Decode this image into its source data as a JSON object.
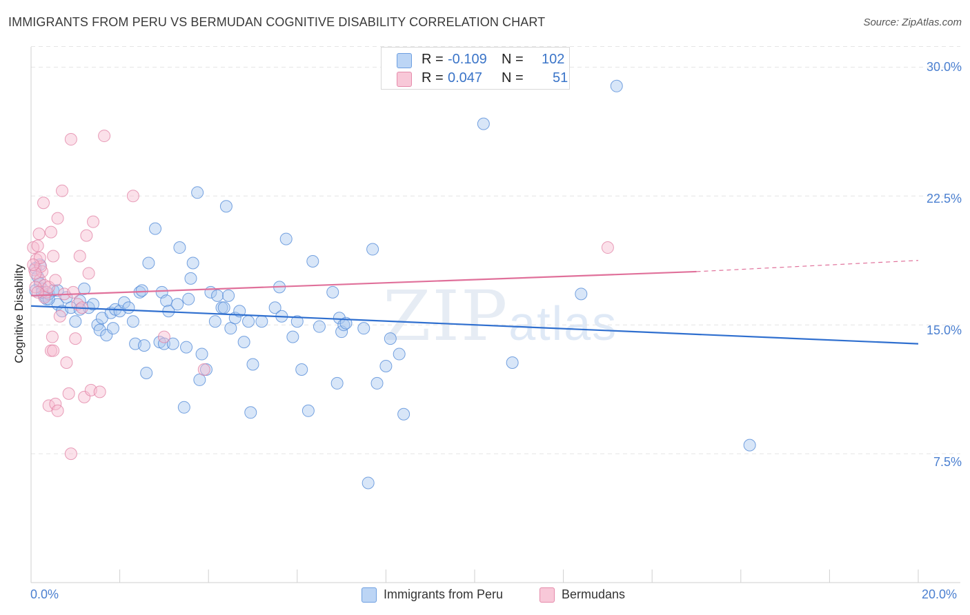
{
  "title": "IMMIGRANTS FROM PERU VS BERMUDAN COGNITIVE DISABILITY CORRELATION CHART",
  "source": "Source: ZipAtlas.com",
  "watermark": {
    "zip": "ZIP",
    "atlas": "atlas"
  },
  "colors": {
    "blue_fill": "#a9c8f0",
    "blue_stroke": "#4a84d6",
    "blue_line": "#2f6fcf",
    "pink_fill": "#f6bcd0",
    "pink_stroke": "#e07ea2",
    "pink_line": "#e0709a",
    "grid": "#e4e4e4",
    "tick_text": "#4a7fd0"
  },
  "legend_top": {
    "rows": [
      {
        "r_label": "R =",
        "r_value": "-0.109",
        "n_label": "N =",
        "n_value": "102"
      },
      {
        "r_label": "R =",
        "r_value": "0.047",
        "n_label": "N =",
        "n_value": "51"
      }
    ]
  },
  "legend_bottom": [
    "Immigrants from Peru",
    "Bermudans"
  ],
  "chart_data": {
    "type": "scatter",
    "title": "IMMIGRANTS FROM PERU VS BERMUDAN COGNITIVE DISABILITY CORRELATION CHART",
    "xlabel": "",
    "ylabel": "Cognitive Disability",
    "xlim": [
      0,
      20
    ],
    "ylim": [
      0,
      31.5
    ],
    "x_ticks": [
      "0.0%",
      "20.0%"
    ],
    "y_ticks": [
      "7.5%",
      "15.0%",
      "22.5%",
      "30.0%"
    ],
    "y_tick_values": [
      7.5,
      15.0,
      22.5,
      30.0
    ],
    "grid": true,
    "legend_position": "top-center",
    "series": [
      {
        "name": "Immigrants from Peru",
        "trend": {
          "x": [
            0,
            20
          ],
          "y": [
            16.1,
            13.9
          ]
        },
        "points": [
          [
            0.1,
            18.3
          ],
          [
            0.15,
            17.8
          ],
          [
            0.2,
            17.4
          ],
          [
            0.25,
            17.1
          ],
          [
            0.3,
            16.7
          ],
          [
            0.35,
            16.5
          ],
          [
            0.1,
            17.0
          ],
          [
            0.2,
            18.5
          ],
          [
            0.4,
            16.8
          ],
          [
            0.5,
            17.0
          ],
          [
            0.6,
            16.2
          ],
          [
            0.7,
            15.8
          ],
          [
            0.8,
            16.6
          ],
          [
            0.9,
            16.0
          ],
          [
            1.0,
            15.2
          ],
          [
            1.1,
            16.4
          ],
          [
            1.2,
            17.1
          ],
          [
            1.3,
            16.0
          ],
          [
            1.4,
            16.2
          ],
          [
            1.5,
            15.0
          ],
          [
            1.55,
            14.7
          ],
          [
            1.6,
            15.4
          ],
          [
            1.7,
            14.4
          ],
          [
            1.8,
            15.7
          ],
          [
            1.85,
            14.8
          ],
          [
            1.9,
            15.9
          ],
          [
            2.0,
            15.8
          ],
          [
            2.1,
            16.3
          ],
          [
            2.2,
            16.0
          ],
          [
            2.3,
            15.2
          ],
          [
            2.35,
            13.9
          ],
          [
            2.45,
            16.9
          ],
          [
            2.5,
            17.0
          ],
          [
            2.55,
            13.8
          ],
          [
            2.6,
            12.2
          ],
          [
            2.65,
            18.6
          ],
          [
            2.8,
            20.6
          ],
          [
            2.9,
            14.0
          ],
          [
            2.95,
            16.9
          ],
          [
            3.0,
            13.9
          ],
          [
            3.05,
            16.4
          ],
          [
            3.1,
            15.8
          ],
          [
            3.2,
            13.9
          ],
          [
            3.3,
            16.2
          ],
          [
            3.35,
            19.5
          ],
          [
            3.45,
            10.2
          ],
          [
            3.5,
            13.7
          ],
          [
            3.55,
            16.5
          ],
          [
            3.6,
            17.7
          ],
          [
            3.65,
            18.6
          ],
          [
            3.75,
            22.7
          ],
          [
            3.8,
            11.8
          ],
          [
            3.85,
            13.3
          ],
          [
            3.95,
            12.4
          ],
          [
            4.05,
            16.9
          ],
          [
            4.15,
            15.2
          ],
          [
            4.2,
            16.7
          ],
          [
            4.3,
            16.0
          ],
          [
            4.35,
            16.0
          ],
          [
            4.4,
            21.9
          ],
          [
            4.45,
            16.7
          ],
          [
            4.5,
            14.8
          ],
          [
            4.6,
            15.4
          ],
          [
            4.7,
            15.8
          ],
          [
            4.8,
            14.0
          ],
          [
            4.9,
            15.2
          ],
          [
            4.95,
            9.9
          ],
          [
            5.0,
            12.7
          ],
          [
            5.2,
            15.2
          ],
          [
            5.5,
            16.0
          ],
          [
            5.6,
            17.2
          ],
          [
            5.65,
            15.5
          ],
          [
            5.75,
            20.0
          ],
          [
            5.9,
            14.3
          ],
          [
            6.0,
            15.2
          ],
          [
            6.1,
            12.4
          ],
          [
            6.25,
            10.0
          ],
          [
            6.35,
            18.7
          ],
          [
            6.5,
            14.9
          ],
          [
            6.8,
            16.9
          ],
          [
            6.9,
            11.6
          ],
          [
            6.95,
            15.4
          ],
          [
            7.0,
            14.6
          ],
          [
            7.05,
            15.0
          ],
          [
            7.1,
            15.1
          ],
          [
            7.5,
            14.8
          ],
          [
            7.6,
            5.8
          ],
          [
            7.7,
            19.4
          ],
          [
            7.8,
            11.6
          ],
          [
            8.0,
            12.6
          ],
          [
            8.1,
            14.2
          ],
          [
            8.3,
            13.3
          ],
          [
            8.4,
            9.8
          ],
          [
            10.2,
            26.7
          ],
          [
            10.85,
            12.8
          ],
          [
            12.4,
            16.8
          ],
          [
            13.2,
            28.9
          ],
          [
            16.2,
            8.0
          ],
          [
            0.6,
            17.0
          ],
          [
            1.1,
            15.9
          ],
          [
            0.4,
            16.5
          ],
          [
            0.25,
            16.9
          ]
        ]
      },
      {
        "name": "Bermudans",
        "trend": {
          "x": [
            0,
            15
          ],
          "y": [
            16.7,
            18.1
          ]
        },
        "trend_dashed": {
          "x": [
            15,
            20
          ],
          "y": [
            18.1,
            18.75
          ]
        },
        "points": [
          [
            0.05,
            19.5
          ],
          [
            0.08,
            18.2
          ],
          [
            0.12,
            18.8
          ],
          [
            0.15,
            19.6
          ],
          [
            0.2,
            17.6
          ],
          [
            0.25,
            18.1
          ],
          [
            0.3,
            17.3
          ],
          [
            0.35,
            16.9
          ],
          [
            0.18,
            20.3
          ],
          [
            0.28,
            22.1
          ],
          [
            0.22,
            18.4
          ],
          [
            0.4,
            17.2
          ],
          [
            0.45,
            20.4
          ],
          [
            0.5,
            19.0
          ],
          [
            0.55,
            17.6
          ],
          [
            0.6,
            21.2
          ],
          [
            0.65,
            15.5
          ],
          [
            0.7,
            22.8
          ],
          [
            0.75,
            16.8
          ],
          [
            0.8,
            12.8
          ],
          [
            0.85,
            11.0
          ],
          [
            0.9,
            25.8
          ],
          [
            0.95,
            16.9
          ],
          [
            1.0,
            14.2
          ],
          [
            1.05,
            16.2
          ],
          [
            1.1,
            19.0
          ],
          [
            1.15,
            16.0
          ],
          [
            1.2,
            10.8
          ],
          [
            1.25,
            20.2
          ],
          [
            1.3,
            18.0
          ],
          [
            1.35,
            11.2
          ],
          [
            1.4,
            21.0
          ],
          [
            1.55,
            11.1
          ],
          [
            1.65,
            26.0
          ],
          [
            0.4,
            10.3
          ],
          [
            0.45,
            13.5
          ],
          [
            0.5,
            13.5
          ],
          [
            0.55,
            10.4
          ],
          [
            0.6,
            10.0
          ],
          [
            0.48,
            14.3
          ],
          [
            0.9,
            7.5
          ],
          [
            0.1,
            17.2
          ],
          [
            0.3,
            16.6
          ],
          [
            0.15,
            16.9
          ],
          [
            2.3,
            22.5
          ],
          [
            3.0,
            14.3
          ],
          [
            3.9,
            12.4
          ],
          [
            13.0,
            19.5
          ],
          [
            0.1,
            18.0
          ],
          [
            0.2,
            18.9
          ],
          [
            0.05,
            18.5
          ]
        ]
      }
    ]
  }
}
